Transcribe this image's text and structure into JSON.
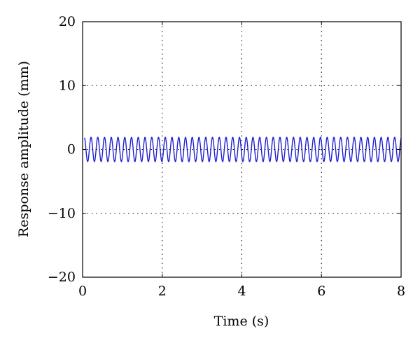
{
  "chart_data": {
    "type": "line",
    "xlabel": "Time (s)",
    "ylabel": "Response amplitude (mm)",
    "xlim": [
      0,
      8
    ],
    "ylim": [
      -20,
      20
    ],
    "x_ticks": [
      0,
      2,
      4,
      6,
      8
    ],
    "y_ticks": [
      -20,
      -10,
      0,
      10,
      20
    ],
    "x_tick_labels": [
      "0",
      "2",
      "4",
      "6",
      "8"
    ],
    "y_tick_labels": [
      "−20",
      "−10",
      "0",
      "10",
      "20"
    ],
    "grid": true,
    "series": [
      {
        "color": "#1f1fd0",
        "frequency_hz": 5.9,
        "amplitude_mm": 1.9,
        "offset_mm": 0,
        "x_start": 0.05,
        "x_end": 8
      }
    ]
  }
}
